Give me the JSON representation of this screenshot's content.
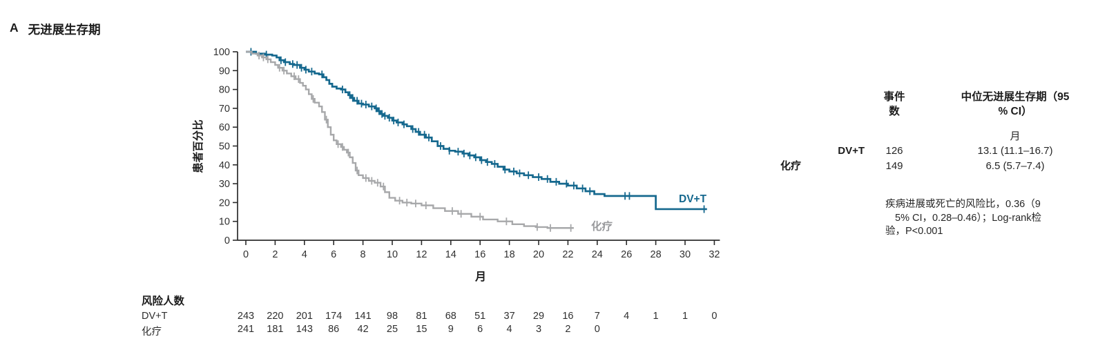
{
  "panel": {
    "label": "A",
    "title": "无进展生存期"
  },
  "chart_data": {
    "type": "line",
    "subtype": "kaplan-meier-step",
    "title": "A 无进展生存期",
    "xlabel": "月",
    "ylabel": "患者百分比",
    "xlim": [
      0,
      32
    ],
    "xticks": [
      0,
      2,
      4,
      6,
      8,
      10,
      12,
      14,
      16,
      18,
      20,
      22,
      24,
      26,
      28,
      30,
      32
    ],
    "ylim": [
      0,
      100
    ],
    "yticks": [
      0,
      10,
      20,
      30,
      40,
      50,
      60,
      70,
      80,
      90,
      100
    ],
    "grid": false,
    "legend_position": "end-of-curve",
    "series": [
      {
        "name": "DV+T",
        "color": "#15688e",
        "end_x": 31.5,
        "steps": [
          [
            0,
            100
          ],
          [
            0.7,
            99
          ],
          [
            1.3,
            98.5
          ],
          [
            1.8,
            98
          ],
          [
            2.1,
            97
          ],
          [
            2.3,
            95.5
          ],
          [
            2.6,
            94.5
          ],
          [
            3.0,
            93.5
          ],
          [
            3.3,
            93
          ],
          [
            3.7,
            91.5
          ],
          [
            4.0,
            90.5
          ],
          [
            4.3,
            89.5
          ],
          [
            4.7,
            88.5
          ],
          [
            5.0,
            88
          ],
          [
            5.3,
            86.5
          ],
          [
            5.5,
            85
          ],
          [
            5.7,
            83
          ],
          [
            5.9,
            81.5
          ],
          [
            6.2,
            80.5
          ],
          [
            6.5,
            80
          ],
          [
            6.8,
            78.5
          ],
          [
            7.0,
            77
          ],
          [
            7.2,
            75.5
          ],
          [
            7.4,
            74
          ],
          [
            7.7,
            72.5
          ],
          [
            8.0,
            72
          ],
          [
            8.4,
            71
          ],
          [
            8.8,
            70
          ],
          [
            9.0,
            68.5
          ],
          [
            9.2,
            67
          ],
          [
            9.4,
            66
          ],
          [
            9.7,
            65
          ],
          [
            10.0,
            63.5
          ],
          [
            10.3,
            62.5
          ],
          [
            10.7,
            61.5
          ],
          [
            11.0,
            60.5
          ],
          [
            11.3,
            59
          ],
          [
            11.6,
            57.5
          ],
          [
            11.9,
            56
          ],
          [
            12.3,
            54.5
          ],
          [
            12.7,
            52.5
          ],
          [
            13.1,
            50
          ],
          [
            13.5,
            48.5
          ],
          [
            13.9,
            47.5
          ],
          [
            14.3,
            47
          ],
          [
            14.8,
            46
          ],
          [
            15.2,
            45
          ],
          [
            15.6,
            44
          ],
          [
            16.0,
            42.5
          ],
          [
            16.4,
            41.5
          ],
          [
            16.8,
            40.5
          ],
          [
            17.2,
            39
          ],
          [
            17.6,
            37.5
          ],
          [
            18.0,
            36.5
          ],
          [
            18.5,
            35.5
          ],
          [
            19.0,
            34.5
          ],
          [
            19.6,
            33.5
          ],
          [
            20.2,
            32.5
          ],
          [
            20.8,
            31
          ],
          [
            21.4,
            30
          ],
          [
            22.0,
            29
          ],
          [
            22.6,
            27.5
          ],
          [
            23.2,
            26
          ],
          [
            23.8,
            24.5
          ],
          [
            24.5,
            23.5
          ],
          [
            28.0,
            16.5
          ]
        ],
        "censor_x": [
          0.35,
          1.4,
          2.4,
          2.7,
          3.2,
          3.5,
          3.8,
          4.1,
          4.5,
          5.2,
          6.6,
          7.1,
          7.3,
          7.6,
          7.9,
          8.2,
          8.6,
          8.9,
          9.1,
          9.3,
          9.5,
          9.8,
          10.1,
          10.4,
          10.8,
          11.4,
          11.8,
          12.2,
          12.5,
          13.3,
          13.9,
          14.5,
          14.9,
          15.3,
          15.7,
          16.1,
          16.5,
          17.0,
          17.7,
          18.3,
          18.7,
          19.3,
          20.0,
          20.6,
          21.2,
          21.9,
          22.4,
          23.0,
          23.5,
          25.9,
          26.2,
          31.3
        ],
        "n_events": 126,
        "median_months": "13.1 (11.1–16.7)"
      },
      {
        "name": "化疗",
        "color": "#a7a8aa",
        "end_x": 22.4,
        "steps": [
          [
            0,
            100
          ],
          [
            0.4,
            99
          ],
          [
            0.8,
            98
          ],
          [
            1.1,
            97
          ],
          [
            1.4,
            96
          ],
          [
            1.7,
            94.5
          ],
          [
            2.0,
            93
          ],
          [
            2.2,
            91.5
          ],
          [
            2.5,
            90
          ],
          [
            2.8,
            88.5
          ],
          [
            3.1,
            87
          ],
          [
            3.4,
            85.5
          ],
          [
            3.7,
            83.5
          ],
          [
            3.9,
            82
          ],
          [
            4.1,
            80
          ],
          [
            4.3,
            77.5
          ],
          [
            4.5,
            75
          ],
          [
            4.7,
            73
          ],
          [
            5.0,
            71
          ],
          [
            5.2,
            68
          ],
          [
            5.4,
            64
          ],
          [
            5.6,
            60
          ],
          [
            5.8,
            56
          ],
          [
            6.0,
            53
          ],
          [
            6.2,
            51
          ],
          [
            6.5,
            49.5
          ],
          [
            6.7,
            48
          ],
          [
            6.9,
            46.5
          ],
          [
            7.1,
            44
          ],
          [
            7.3,
            41
          ],
          [
            7.5,
            37
          ],
          [
            7.7,
            34.5
          ],
          [
            8.0,
            33
          ],
          [
            8.4,
            31.5
          ],
          [
            8.8,
            30.5
          ],
          [
            9.2,
            28.5
          ],
          [
            9.5,
            25.5
          ],
          [
            9.8,
            22.5
          ],
          [
            10.2,
            21
          ],
          [
            10.7,
            20
          ],
          [
            11.3,
            19.5
          ],
          [
            12.0,
            18.5
          ],
          [
            12.8,
            17
          ],
          [
            13.6,
            15.5
          ],
          [
            14.5,
            14
          ],
          [
            15.4,
            12.5
          ],
          [
            16.2,
            11
          ],
          [
            17.2,
            10
          ],
          [
            18.2,
            8.5
          ],
          [
            19.0,
            7.5
          ],
          [
            19.8,
            7
          ],
          [
            20.6,
            6.5
          ]
        ],
        "censor_x": [
          0.9,
          1.2,
          1.5,
          2.3,
          2.6,
          3.3,
          3.6,
          4.6,
          5.5,
          6.3,
          6.6,
          7.0,
          7.6,
          8.2,
          8.6,
          9.0,
          9.4,
          10.5,
          11.0,
          11.6,
          12.3,
          14.1,
          14.7,
          16.0,
          17.8,
          19.9,
          20.8,
          22.2
        ],
        "n_events": 149,
        "median_months": "6.5 (5.7–7.4)"
      }
    ]
  },
  "risk_table": {
    "title": "风险人数",
    "month_step": 2,
    "rows": [
      {
        "label": "DV+T",
        "counts": [
          243,
          220,
          201,
          174,
          141,
          98,
          81,
          68,
          51,
          37,
          29,
          16,
          7,
          4,
          1,
          1,
          0
        ]
      },
      {
        "label": "化疗",
        "counts": [
          241,
          181,
          143,
          86,
          42,
          25,
          15,
          9,
          6,
          4,
          3,
          2,
          0
        ]
      }
    ]
  },
  "stats_table": {
    "events_header_lines": [
      "事件",
      "数"
    ],
    "median_header_lines": [
      "中位无进展生存期（95",
      "% CI）"
    ],
    "unit": "月",
    "rows": [
      {
        "label": "DV+T",
        "events": "126",
        "median": "13.1 (11.1–16.7)"
      },
      {
        "label": "化疗",
        "events": "149",
        "median": "6.5 (5.7–7.4)"
      }
    ]
  },
  "note": {
    "lines": [
      "疾病进展或死亡的风险比，0.36（9",
      "5% CI，0.28–0.46）；Log-rank检",
      "验，P<0.001"
    ]
  },
  "colors": {
    "dvt_blue": "#15688e",
    "chemo_gray": "#a7a8aa",
    "label_gray": "#98999c",
    "axis": "#2b2b2b"
  }
}
